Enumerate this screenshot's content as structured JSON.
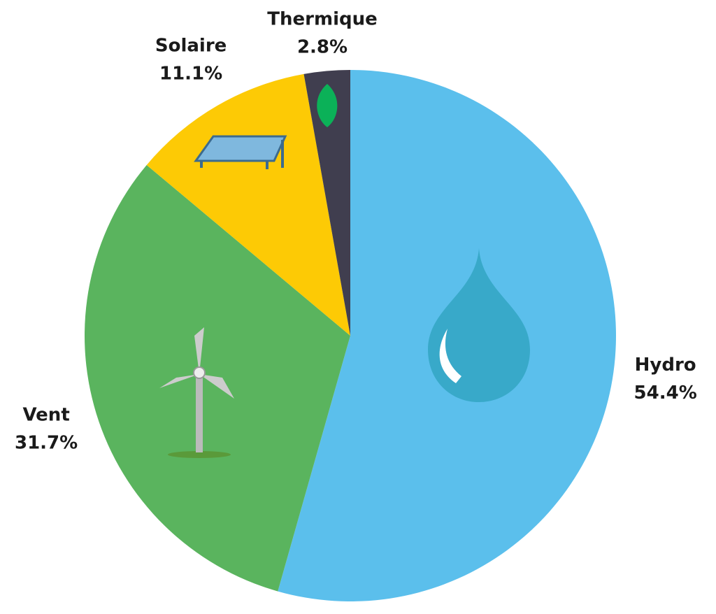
{
  "chart_data": {
    "type": "pie",
    "categories": [
      "Hydro",
      "Vent",
      "Solaire",
      "Thermique"
    ],
    "values": [
      54.4,
      31.7,
      11.1,
      2.8
    ],
    "value_labels": [
      "54.4%",
      "31.7%",
      "11.1%",
      "2.8%"
    ],
    "colors": [
      "#5bbfec",
      "#5ab45e",
      "#fdca05",
      "#403e4f"
    ]
  }
}
